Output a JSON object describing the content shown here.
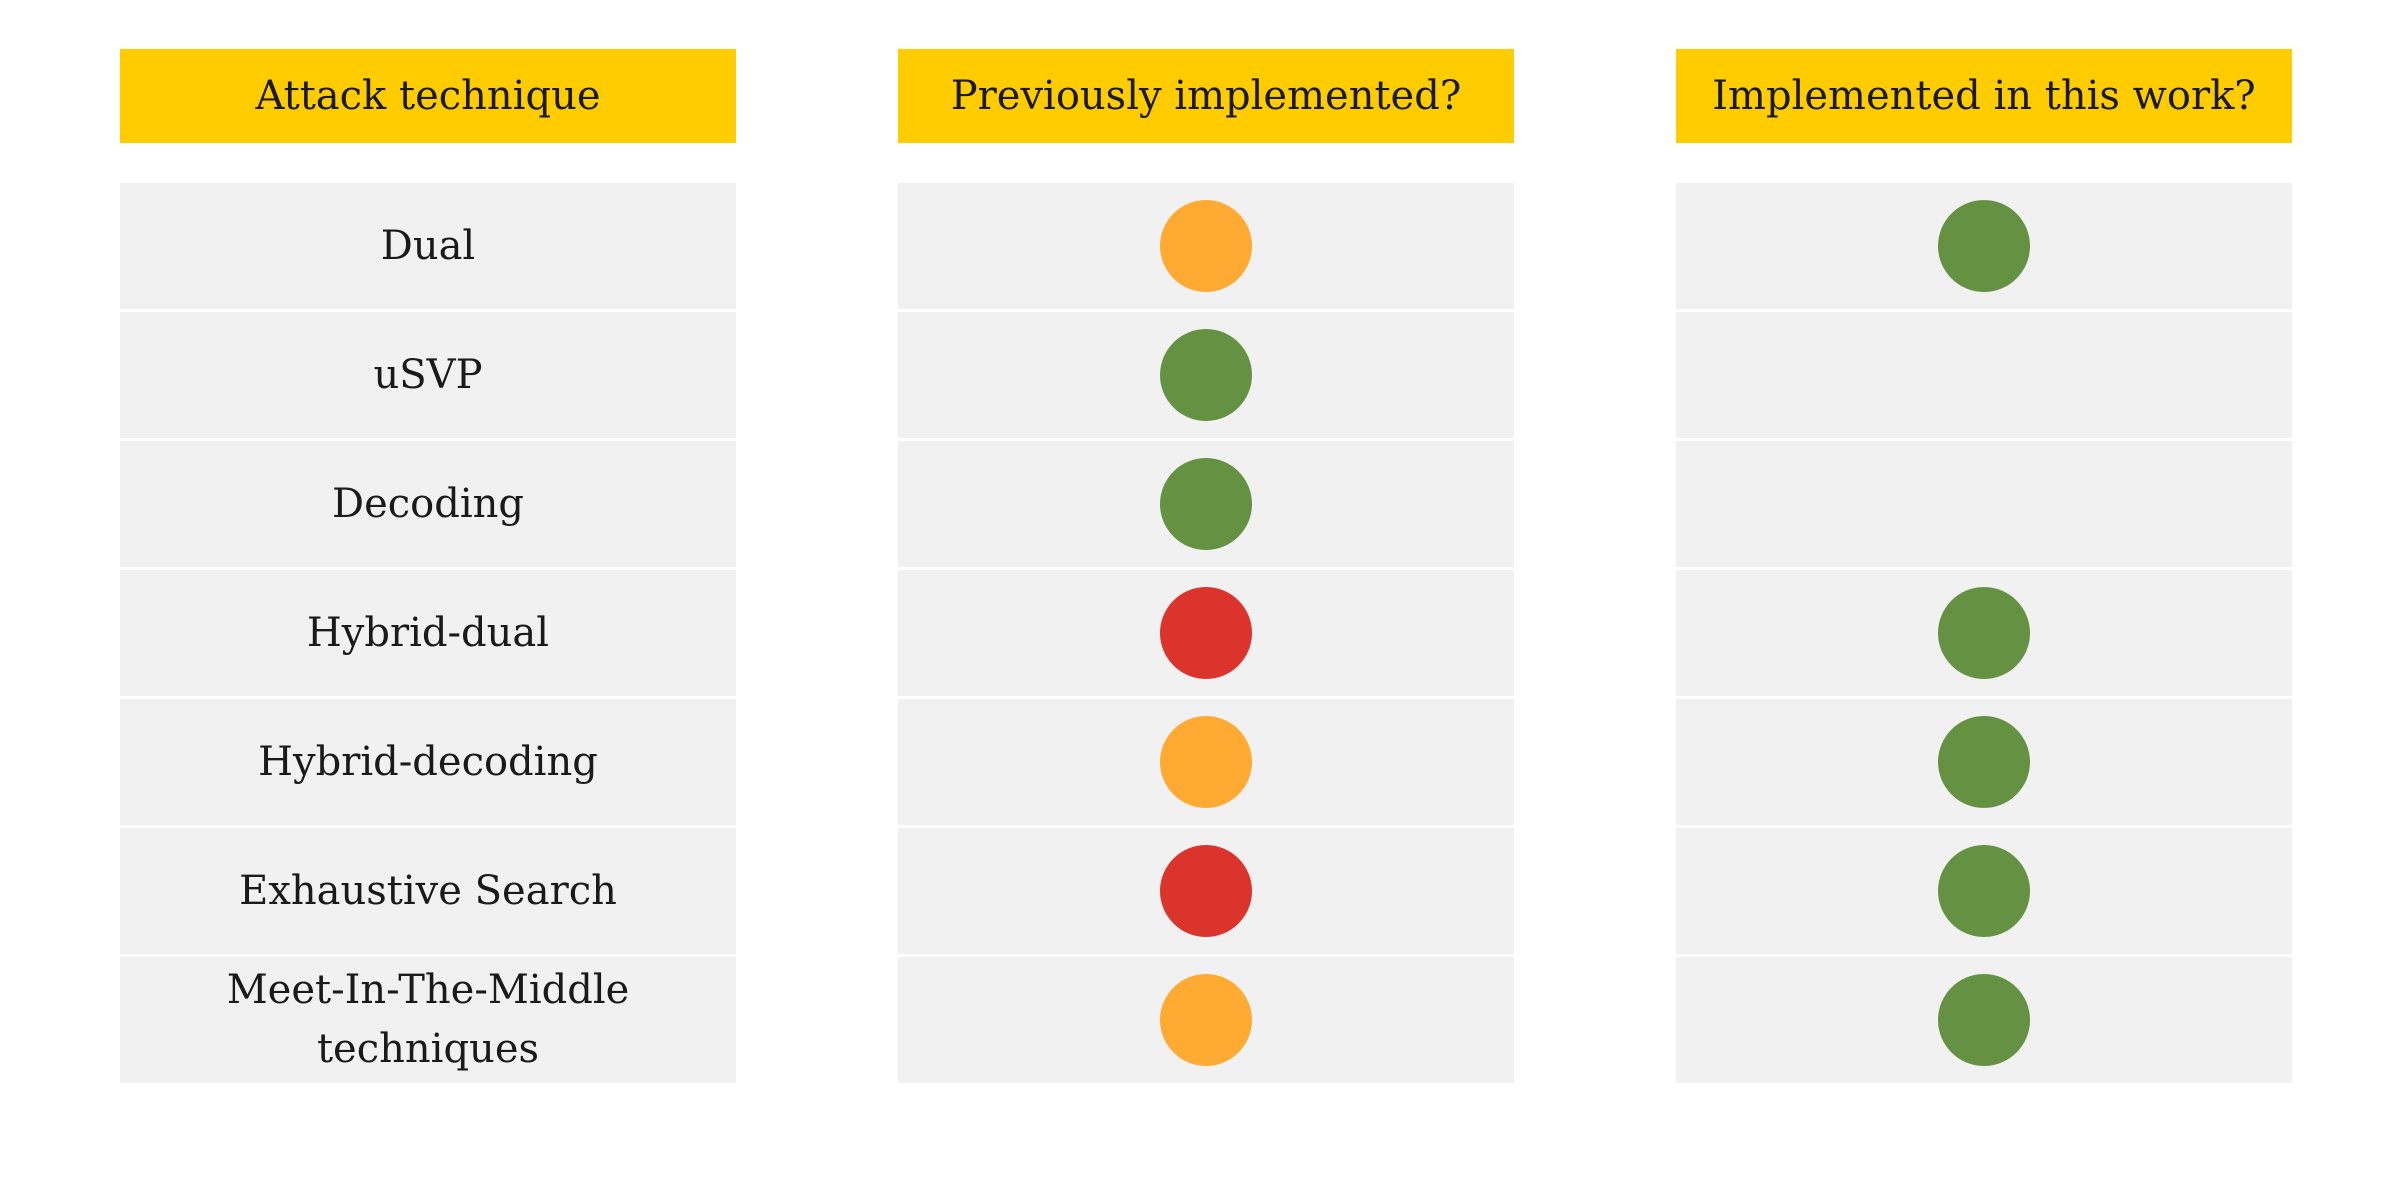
{
  "columns": {
    "technique_header": "Attack technique",
    "previous_header": "Previously implemented?",
    "this_work_header": "Implemented in this work?"
  },
  "status_colors": {
    "green": "#659143",
    "orange": "#ffab33",
    "red": "#db342c",
    "none": "transparent"
  },
  "rows": [
    {
      "technique": "Dual",
      "previous": "orange",
      "this_work": "green"
    },
    {
      "technique": "uSVP",
      "previous": "green",
      "this_work": "none"
    },
    {
      "technique": "Decoding",
      "previous": "green",
      "this_work": "none"
    },
    {
      "technique": "Hybrid-dual",
      "previous": "red",
      "this_work": "green"
    },
    {
      "technique": "Hybrid-decoding",
      "previous": "orange",
      "this_work": "green"
    },
    {
      "technique": "Exhaustive Search",
      "previous": "red",
      "this_work": "green"
    },
    {
      "technique": "Meet-In-The-Middle techniques",
      "previous": "orange",
      "this_work": "green"
    }
  ]
}
